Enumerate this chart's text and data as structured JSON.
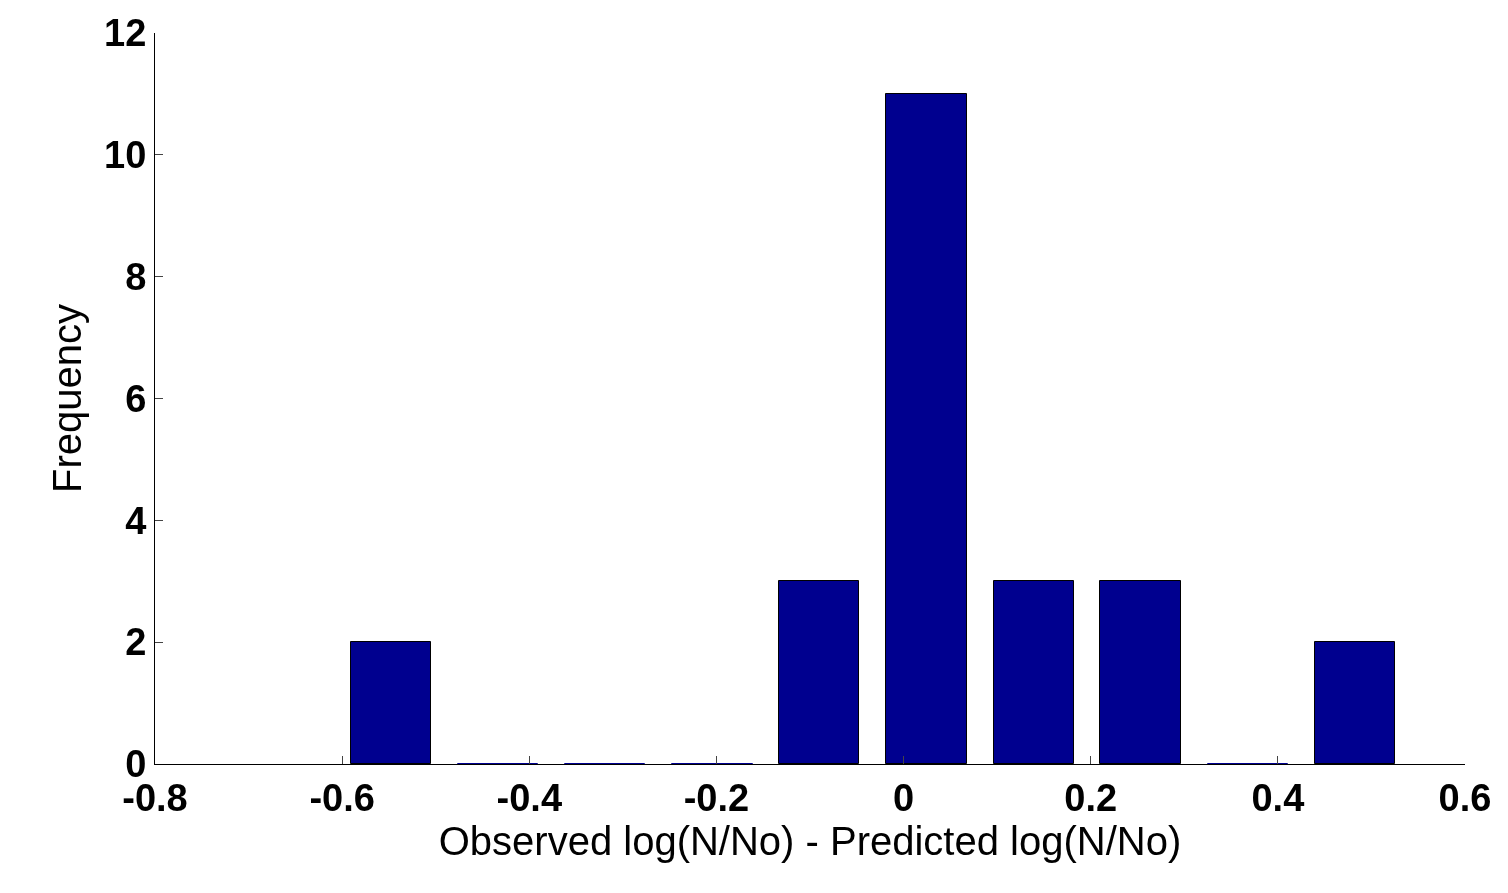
{
  "chart_data": {
    "type": "histogram",
    "xlabel": "Observed log(N/No) - Predicted log(N/No)",
    "ylabel": "Frequency",
    "bins": [
      -0.605,
      -0.491,
      -0.376,
      -0.262,
      -0.147,
      -0.033,
      0.082,
      0.196,
      0.311,
      0.425,
      0.54
    ],
    "values": [
      2,
      0,
      0,
      0,
      3,
      11,
      3,
      3,
      0,
      2
    ],
    "color": "#00008f",
    "xlim": [
      -0.8,
      0.6
    ],
    "xticks": [
      -0.8,
      -0.6,
      -0.4,
      -0.2,
      0,
      0.2,
      0.4,
      0.6
    ],
    "ylim": [
      0,
      12
    ],
    "yticks": [
      0,
      2,
      4,
      6,
      8,
      10,
      12
    ]
  }
}
